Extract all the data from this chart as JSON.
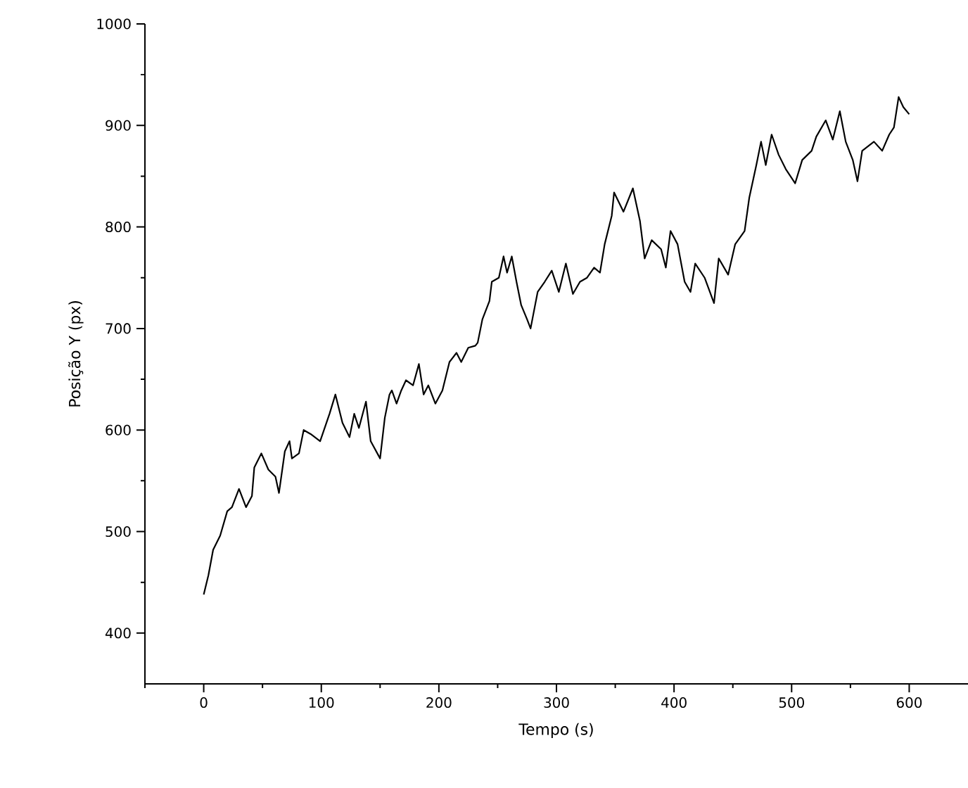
{
  "chart_data": {
    "type": "line",
    "xlabel": "Tempo (s)",
    "ylabel": "Posição Y (px)",
    "xlim": [
      -50,
      650
    ],
    "ylim": [
      350,
      1000
    ],
    "xticks": [
      {
        "value": -50,
        "label": null
      },
      0,
      {
        "value": 50,
        "label": null
      },
      100,
      {
        "value": 150,
        "label": null
      },
      200,
      {
        "value": 250,
        "label": null
      },
      300,
      {
        "value": 350,
        "label": null
      },
      400,
      {
        "value": 450,
        "label": null
      },
      500,
      {
        "value": 550,
        "label": null
      },
      600
    ],
    "yticks": [
      400,
      {
        "value": 450,
        "label": null
      },
      500,
      {
        "value": 550,
        "label": null
      },
      600,
      {
        "value": 650,
        "label": null
      },
      700,
      {
        "value": 750,
        "label": null
      },
      800,
      {
        "value": 850,
        "label": null
      },
      900,
      {
        "value": 950,
        "label": null
      },
      1000
    ],
    "grid": false,
    "marker": "none",
    "line_style": "solid",
    "series": [
      {
        "color": "#000000",
        "x": [
          0,
          4,
          8,
          14,
          20,
          24,
          30,
          36,
          41,
          43,
          49,
          55,
          61,
          64,
          69,
          73,
          75,
          81,
          85,
          91,
          99,
          107,
          112,
          118,
          124,
          128,
          132,
          138,
          142,
          150,
          154,
          158,
          160,
          164,
          168,
          172,
          178,
          183,
          187,
          191,
          197,
          203,
          209,
          215,
          219,
          225,
          231,
          233,
          237,
          243,
          245,
          251,
          255,
          258,
          262,
          266,
          270,
          275,
          278,
          284,
          290,
          296,
          302,
          308,
          314,
          320,
          326,
          332,
          337,
          341,
          347,
          349,
          357,
          365,
          371,
          375,
          381,
          389,
          393,
          397,
          403,
          409,
          414,
          418,
          426,
          434,
          438,
          446,
          452,
          460,
          464,
          470,
          474,
          478,
          483,
          489,
          495,
          503,
          509,
          517,
          521,
          529,
          535,
          541,
          546,
          552,
          556,
          560,
          570,
          577,
          583,
          587,
          591,
          595,
          600
        ],
        "values": [
          438,
          457,
          482,
          496,
          520,
          524,
          542,
          524,
          535,
          563,
          577,
          561,
          554,
          538,
          579,
          589,
          572,
          577,
          600,
          596,
          589,
          616,
          635,
          607,
          593,
          616,
          602,
          628,
          589,
          572,
          612,
          635,
          639,
          626,
          639,
          649,
          644,
          665,
          635,
          644,
          626,
          639,
          667,
          676,
          667,
          681,
          683,
          686,
          709,
          727,
          746,
          750,
          771,
          755,
          771,
          746,
          723,
          709,
          700,
          736,
          746,
          757,
          736,
          764,
          734,
          746,
          750,
          760,
          755,
          783,
          811,
          834,
          815,
          838,
          806,
          769,
          787,
          778,
          760,
          796,
          783,
          746,
          736,
          764,
          750,
          725,
          769,
          753,
          783,
          796,
          829,
          861,
          884,
          861,
          891,
          871,
          857,
          843,
          866,
          875,
          889,
          905,
          886,
          914,
          884,
          866,
          845,
          875,
          884,
          875,
          891,
          898,
          928,
          918,
          911
        ]
      }
    ]
  }
}
